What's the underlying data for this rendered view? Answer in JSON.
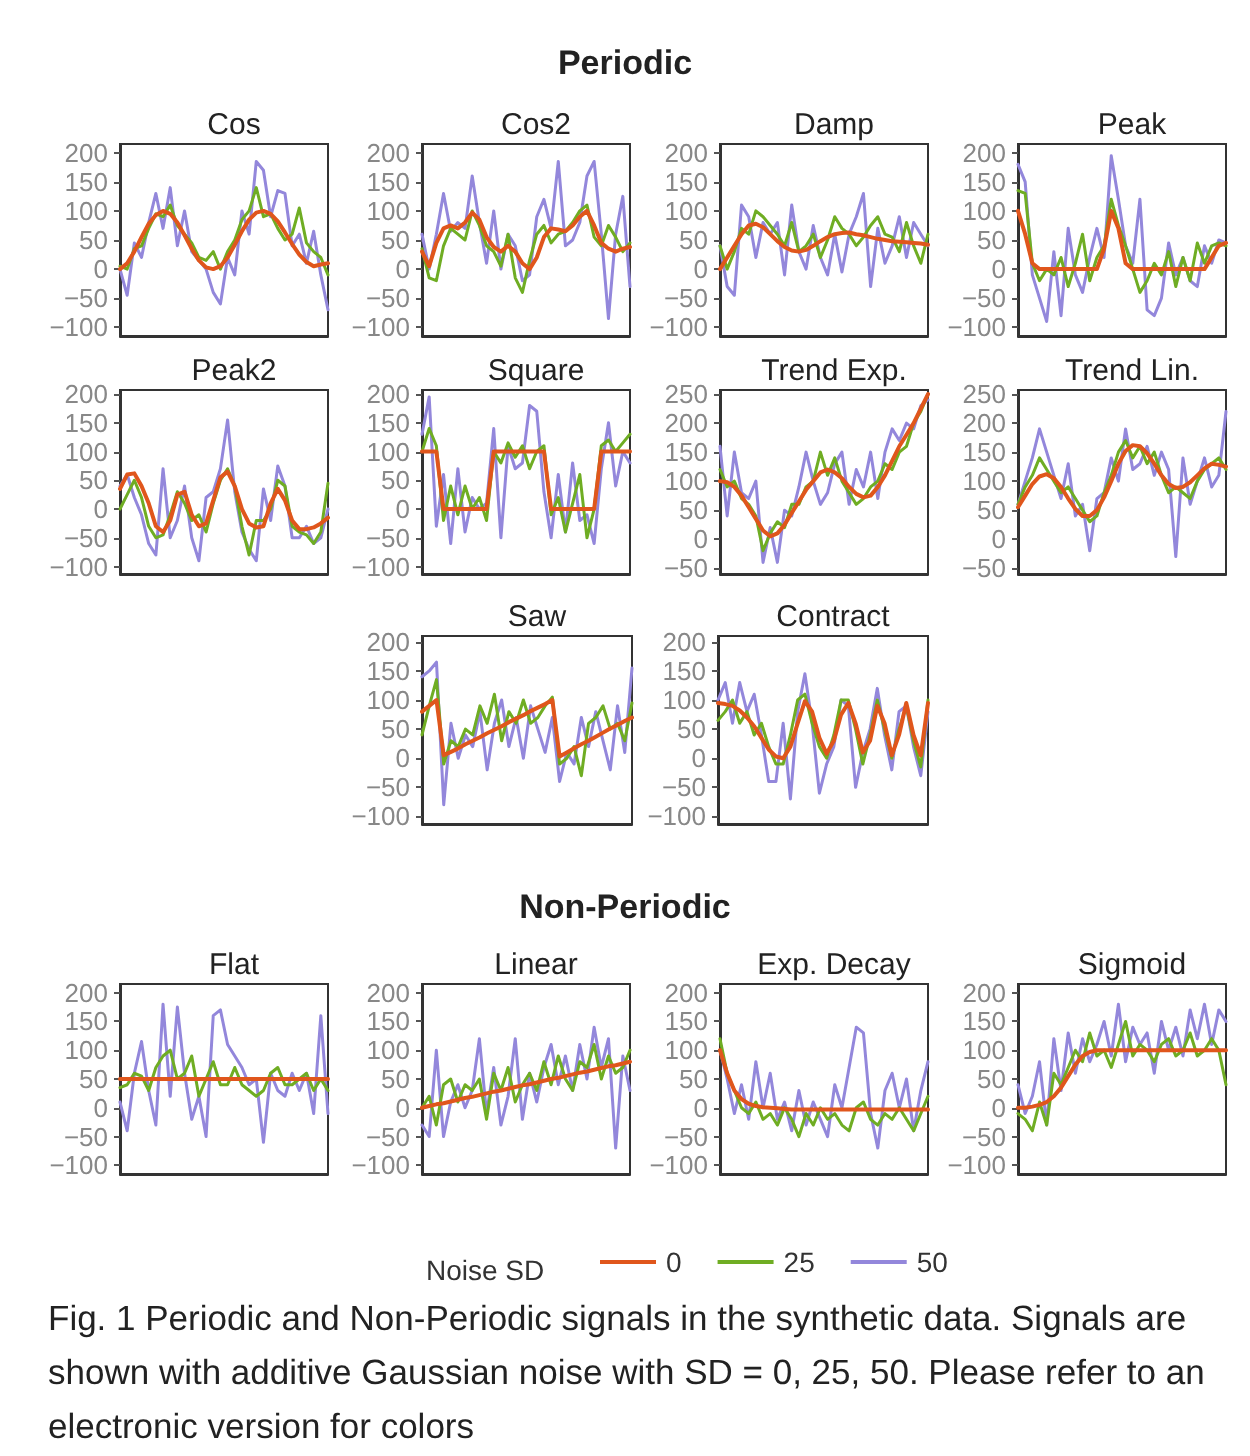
{
  "chart_data": [
    {
      "type": "line",
      "title": "Cos",
      "annotations": [
        "Periodic"
      ],
      "categories": [
        null,
        null,
        null,
        null,
        null,
        null,
        null,
        null,
        null,
        null,
        null,
        null,
        null,
        null,
        null,
        null,
        null,
        null,
        null,
        null,
        null,
        null,
        null,
        null,
        null,
        null,
        null,
        null,
        null,
        null
      ],
      "ylim": [
        -115,
        215
      ],
      "yticks": [
        -100,
        -50,
        0,
        50,
        100,
        150,
        200
      ],
      "tick_labels": "y",
      "series": [
        {
          "color": "#e0561c",
          "values": [
            0,
            10,
            30,
            55,
            78,
            93,
            100,
            95,
            80,
            58,
            35,
            15,
            3,
            0,
            5,
            20,
            42,
            65,
            85,
            97,
            100,
            95,
            82,
            63,
            43,
            25,
            12,
            5,
            8,
            10
          ]
        },
        {
          "color": "#6fad23",
          "values": [
            5,
            0,
            35,
            40,
            70,
            95,
            90,
            110,
            75,
            60,
            45,
            20,
            15,
            30,
            0,
            30,
            50,
            85,
            100,
            140,
            90,
            95,
            70,
            50,
            60,
            105,
            45,
            30,
            20,
            -10
          ]
        },
        {
          "color": "#9387db",
          "values": [
            0,
            -45,
            45,
            20,
            80,
            130,
            70,
            140,
            40,
            100,
            30,
            15,
            0,
            -40,
            -60,
            20,
            -10,
            100,
            60,
            185,
            170,
            90,
            135,
            130,
            40,
            60,
            10,
            65,
            -10,
            -70
          ]
        }
      ]
    },
    {
      "type": "line",
      "title": "Cos2",
      "categories": [
        null,
        null,
        null,
        null,
        null,
        null,
        null,
        null,
        null,
        null,
        null,
        null,
        null,
        null,
        null,
        null,
        null,
        null,
        null,
        null,
        null,
        null,
        null,
        null,
        null,
        null,
        null,
        null,
        null,
        null
      ],
      "ylim": [
        -115,
        215
      ],
      "yticks": [
        -100,
        -50,
        0,
        50,
        100,
        150,
        200
      ],
      "tick_labels": "y",
      "series": [
        {
          "color": "#e0561c",
          "values": [
            30,
            5,
            45,
            70,
            75,
            70,
            80,
            97,
            85,
            55,
            38,
            30,
            40,
            30,
            10,
            0,
            20,
            55,
            70,
            68,
            65,
            75,
            90,
            100,
            75,
            45,
            35,
            30,
            35,
            38
          ]
        },
        {
          "color": "#6fad23",
          "values": [
            35,
            -15,
            -20,
            40,
            70,
            60,
            50,
            100,
            75,
            40,
            30,
            5,
            60,
            -15,
            -40,
            15,
            60,
            75,
            45,
            60,
            65,
            80,
            100,
            110,
            55,
            40,
            75,
            55,
            30,
            45
          ]
        },
        {
          "color": "#9387db",
          "values": [
            60,
            0,
            60,
            130,
            65,
            80,
            70,
            160,
            80,
            10,
            100,
            0,
            60,
            40,
            -20,
            -10,
            90,
            120,
            70,
            185,
            40,
            50,
            80,
            160,
            185,
            60,
            -85,
            60,
            125,
            -30
          ]
        }
      ]
    },
    {
      "type": "line",
      "title": "Damp",
      "categories": [
        null,
        null,
        null,
        null,
        null,
        null,
        null,
        null,
        null,
        null,
        null,
        null,
        null,
        null,
        null,
        null,
        null,
        null,
        null,
        null,
        null,
        null,
        null,
        null,
        null,
        null,
        null,
        null,
        null,
        null
      ],
      "ylim": [
        -115,
        215
      ],
      "yticks": [
        -100,
        -50,
        0,
        50,
        100,
        150,
        200
      ],
      "tick_labels": "y",
      "series": [
        {
          "color": "#e0561c",
          "values": [
            0,
            20,
            40,
            60,
            75,
            78,
            72,
            60,
            48,
            38,
            32,
            30,
            33,
            40,
            48,
            55,
            60,
            62,
            63,
            60,
            58,
            55,
            52,
            50,
            48,
            47,
            46,
            45,
            44,
            42
          ]
        },
        {
          "color": "#6fad23",
          "values": [
            40,
            0,
            30,
            70,
            60,
            100,
            90,
            75,
            60,
            40,
            80,
            30,
            40,
            60,
            20,
            50,
            90,
            70,
            60,
            40,
            55,
            75,
            90,
            60,
            55,
            30,
            80,
            40,
            10,
            60
          ]
        },
        {
          "color": "#9387db",
          "values": [
            40,
            -30,
            -45,
            110,
            90,
            20,
            80,
            60,
            80,
            -10,
            110,
            30,
            0,
            75,
            20,
            -10,
            60,
            -5,
            60,
            90,
            130,
            -30,
            70,
            10,
            40,
            90,
            20,
            80,
            60,
            40
          ]
        }
      ]
    },
    {
      "type": "line",
      "title": "Peak",
      "categories": [
        null,
        null,
        null,
        null,
        null,
        null,
        null,
        null,
        null,
        null,
        null,
        null,
        null,
        null,
        null,
        null,
        null,
        null,
        null,
        null,
        null,
        null,
        null,
        null,
        null,
        null,
        null,
        null,
        null,
        null
      ],
      "ylim": [
        -115,
        215
      ],
      "yticks": [
        -100,
        -50,
        0,
        50,
        100,
        150,
        200
      ],
      "tick_labels": "y",
      "series": [
        {
          "color": "#e0561c",
          "values": [
            100,
            60,
            10,
            0,
            0,
            0,
            0,
            0,
            0,
            0,
            0,
            0,
            35,
            100,
            70,
            10,
            0,
            0,
            0,
            0,
            0,
            0,
            0,
            0,
            0,
            0,
            0,
            20,
            40,
            45
          ]
        },
        {
          "color": "#6fad23",
          "values": [
            135,
            130,
            10,
            -20,
            0,
            -10,
            20,
            -30,
            10,
            60,
            -20,
            20,
            40,
            120,
            75,
            40,
            0,
            -40,
            -20,
            10,
            -10,
            30,
            -30,
            20,
            -20,
            45,
            10,
            40,
            45,
            40
          ]
        },
        {
          "color": "#9387db",
          "values": [
            180,
            150,
            -10,
            -50,
            -90,
            30,
            -80,
            70,
            -10,
            -40,
            20,
            70,
            20,
            195,
            120,
            40,
            10,
            120,
            -70,
            -80,
            -50,
            45,
            -10,
            20,
            -20,
            -30,
            40,
            10,
            50,
            45
          ]
        }
      ]
    },
    {
      "type": "line",
      "title": "Peak2",
      "categories": [
        null,
        null,
        null,
        null,
        null,
        null,
        null,
        null,
        null,
        null,
        null,
        null,
        null,
        null,
        null,
        null,
        null,
        null,
        null,
        null,
        null,
        null,
        null,
        null,
        null,
        null,
        null,
        null,
        null,
        null
      ],
      "ylim": [
        -113,
        207
      ],
      "yticks": [
        -100,
        -50,
        0,
        50,
        100,
        150,
        200
      ],
      "tick_labels": "y",
      "series": [
        {
          "color": "#e0561c",
          "values": [
            35,
            60,
            62,
            40,
            10,
            -30,
            -40,
            -20,
            25,
            30,
            -10,
            -30,
            -25,
            15,
            55,
            65,
            40,
            0,
            -25,
            -32,
            -30,
            10,
            35,
            15,
            -20,
            -35,
            -35,
            -32,
            -25,
            -15
          ]
        },
        {
          "color": "#6fad23",
          "values": [
            0,
            25,
            50,
            20,
            -30,
            -50,
            -45,
            -10,
            30,
            10,
            -20,
            -10,
            -40,
            10,
            50,
            70,
            40,
            -30,
            -80,
            -20,
            -20,
            0,
            50,
            40,
            -30,
            -40,
            -45,
            -60,
            -40,
            45
          ]
        },
        {
          "color": "#9387db",
          "values": [
            40,
            60,
            20,
            -10,
            -60,
            -80,
            70,
            -50,
            -20,
            40,
            -50,
            -90,
            20,
            30,
            70,
            155,
            30,
            -40,
            -70,
            -90,
            35,
            -20,
            75,
            40,
            -50,
            -50,
            -30,
            -60,
            -50,
            0
          ]
        }
      ]
    },
    {
      "type": "line",
      "title": "Square",
      "categories": [
        null,
        null,
        null,
        null,
        null,
        null,
        null,
        null,
        null,
        null,
        null,
        null,
        null,
        null,
        null,
        null,
        null,
        null,
        null,
        null,
        null,
        null,
        null,
        null,
        null,
        null,
        null,
        null,
        null,
        null
      ],
      "ylim": [
        -113,
        207
      ],
      "yticks": [
        -100,
        -50,
        0,
        50,
        100,
        150,
        200
      ],
      "tick_labels": "y",
      "series": [
        {
          "color": "#e0561c",
          "values": [
            100,
            100,
            100,
            0,
            0,
            0,
            0,
            0,
            0,
            0,
            100,
            100,
            100,
            100,
            100,
            100,
            100,
            100,
            0,
            0,
            0,
            0,
            0,
            0,
            0,
            100,
            100,
            100,
            100,
            100
          ]
        },
        {
          "color": "#6fad23",
          "values": [
            100,
            140,
            110,
            -20,
            40,
            -10,
            40,
            0,
            20,
            -20,
            100,
            80,
            115,
            90,
            110,
            70,
            100,
            110,
            -10,
            20,
            -40,
            10,
            60,
            -50,
            0,
            110,
            120,
            100,
            115,
            130
          ]
        },
        {
          "color": "#9387db",
          "values": [
            130,
            195,
            -30,
            60,
            -60,
            70,
            -40,
            20,
            0,
            10,
            140,
            -50,
            110,
            70,
            80,
            180,
            170,
            30,
            -50,
            60,
            -40,
            80,
            -20,
            -10,
            -60,
            70,
            150,
            40,
            100,
            80
          ]
        }
      ]
    },
    {
      "type": "line",
      "title": "Trend Exp.",
      "categories": [
        null,
        null,
        null,
        null,
        null,
        null,
        null,
        null,
        null,
        null,
        null,
        null,
        null,
        null,
        null,
        null,
        null,
        null,
        null,
        null,
        null,
        null,
        null,
        null,
        null,
        null,
        null,
        null,
        null,
        null
      ],
      "ylim": [
        -60,
        257
      ],
      "yticks": [
        -50,
        0,
        50,
        100,
        150,
        200,
        250
      ],
      "tick_labels": "y",
      "series": [
        {
          "color": "#e0561c",
          "values": [
            100,
            98,
            90,
            75,
            55,
            35,
            15,
            5,
            10,
            25,
            45,
            65,
            85,
            100,
            115,
            120,
            115,
            105,
            90,
            78,
            72,
            75,
            90,
            110,
            135,
            160,
            180,
            200,
            225,
            250
          ]
        },
        {
          "color": "#6fad23",
          "values": [
            120,
            90,
            100,
            70,
            60,
            40,
            -20,
            10,
            30,
            20,
            60,
            60,
            90,
            100,
            150,
            110,
            140,
            100,
            80,
            60,
            70,
            90,
            100,
            130,
            120,
            150,
            160,
            200,
            220,
            250
          ]
        },
        {
          "color": "#9387db",
          "values": [
            160,
            40,
            150,
            80,
            70,
            100,
            -40,
            20,
            -40,
            50,
            40,
            90,
            150,
            100,
            60,
            80,
            130,
            150,
            60,
            120,
            90,
            150,
            70,
            150,
            190,
            170,
            200,
            190,
            230,
            240
          ]
        }
      ]
    },
    {
      "type": "line",
      "title": "Trend Lin.",
      "categories": [
        null,
        null,
        null,
        null,
        null,
        null,
        null,
        null,
        null,
        null,
        null,
        null,
        null,
        null,
        null,
        null,
        null,
        null,
        null,
        null,
        null,
        null,
        null,
        null,
        null,
        null,
        null,
        null,
        null,
        null
      ],
      "ylim": [
        -60,
        257
      ],
      "yticks": [
        -50,
        0,
        50,
        100,
        150,
        200,
        250
      ],
      "tick_labels": "y",
      "series": [
        {
          "color": "#e0561c",
          "values": [
            55,
            75,
            95,
            108,
            112,
            105,
            90,
            70,
            52,
            40,
            40,
            50,
            72,
            100,
            130,
            152,
            162,
            160,
            148,
            130,
            110,
            95,
            88,
            90,
            98,
            110,
            122,
            130,
            128,
            125
          ]
        },
        {
          "color": "#6fad23",
          "values": [
            60,
            90,
            110,
            140,
            120,
            100,
            80,
            90,
            70,
            50,
            30,
            40,
            80,
            110,
            150,
            170,
            140,
            160,
            130,
            150,
            110,
            80,
            90,
            80,
            70,
            100,
            120,
            130,
            140,
            120
          ]
        },
        {
          "color": "#9387db",
          "values": [
            60,
            100,
            140,
            190,
            150,
            110,
            70,
            130,
            40,
            60,
            -20,
            70,
            80,
            140,
            100,
            190,
            120,
            130,
            160,
            110,
            150,
            120,
            -30,
            140,
            60,
            100,
            140,
            90,
            110,
            220
          ]
        }
      ]
    },
    {
      "type": "line",
      "title": "Saw",
      "categories": [
        null,
        null,
        null,
        null,
        null,
        null,
        null,
        null,
        null,
        null,
        null,
        null,
        null,
        null,
        null,
        null,
        null,
        null,
        null,
        null,
        null,
        null,
        null,
        null,
        null,
        null,
        null,
        null,
        null,
        null
      ],
      "ylim": [
        -113,
        210
      ],
      "yticks": [
        -100,
        -50,
        0,
        50,
        100,
        150,
        200
      ],
      "tick_labels": "y",
      "series": [
        {
          "color": "#e0561c",
          "values": [
            80,
            90,
            100,
            5,
            11,
            17,
            24,
            30,
            36,
            43,
            49,
            55,
            62,
            68,
            74,
            81,
            87,
            93,
            100,
            3,
            10,
            17,
            24,
            30,
            37,
            44,
            51,
            57,
            64,
            70
          ]
        },
        {
          "color": "#6fad23",
          "values": [
            40,
            90,
            135,
            -10,
            30,
            20,
            50,
            40,
            90,
            60,
            110,
            30,
            80,
            60,
            100,
            60,
            70,
            90,
            105,
            -10,
            0,
            20,
            -30,
            60,
            70,
            90,
            50,
            60,
            30,
            95
          ]
        },
        {
          "color": "#9387db",
          "values": [
            140,
            150,
            165,
            -80,
            60,
            0,
            40,
            20,
            80,
            -20,
            60,
            100,
            20,
            70,
            0,
            90,
            50,
            10,
            70,
            -40,
            10,
            -10,
            70,
            20,
            80,
            30,
            -20,
            90,
            10,
            155
          ]
        }
      ]
    },
    {
      "type": "line",
      "title": "Contract",
      "categories": [
        null,
        null,
        null,
        null,
        null,
        null,
        null,
        null,
        null,
        null,
        null,
        null,
        null,
        null,
        null,
        null,
        null,
        null,
        null,
        null,
        null,
        null,
        null,
        null,
        null,
        null,
        null,
        null,
        null,
        null
      ],
      "ylim": [
        -113,
        210
      ],
      "yticks": [
        -100,
        -50,
        0,
        50,
        100,
        150,
        200
      ],
      "tick_labels": "y",
      "series": [
        {
          "color": "#e0561c",
          "values": [
            95,
            93,
            90,
            82,
            70,
            55,
            35,
            15,
            3,
            0,
            20,
            60,
            98,
            80,
            35,
            8,
            30,
            75,
            95,
            60,
            10,
            30,
            90,
            60,
            5,
            40,
            95,
            40,
            5,
            95
          ]
        },
        {
          "color": "#6fad23",
          "values": [
            65,
            80,
            100,
            60,
            80,
            40,
            60,
            20,
            -10,
            -10,
            40,
            100,
            110,
            60,
            20,
            0,
            40,
            100,
            100,
            50,
            -10,
            40,
            100,
            50,
            0,
            50,
            90,
            30,
            -15,
            100
          ]
        },
        {
          "color": "#9387db",
          "values": [
            100,
            130,
            60,
            130,
            80,
            110,
            40,
            -40,
            -40,
            60,
            -70,
            80,
            145,
            60,
            -60,
            -10,
            20,
            100,
            90,
            -50,
            10,
            50,
            120,
            40,
            -20,
            80,
            90,
            20,
            -30,
            80
          ]
        }
      ]
    },
    {
      "type": "line",
      "title": "Flat",
      "annotations": [
        "Non-Periodic"
      ],
      "categories": [
        null,
        null,
        null,
        null,
        null,
        null,
        null,
        null,
        null,
        null,
        null,
        null,
        null,
        null,
        null,
        null,
        null,
        null,
        null,
        null,
        null,
        null,
        null,
        null,
        null,
        null,
        null,
        null,
        null,
        null
      ],
      "ylim": [
        -115,
        215
      ],
      "yticks": [
        -100,
        -50,
        0,
        50,
        100,
        150,
        200
      ],
      "tick_labels": "y",
      "series": [
        {
          "color": "#e0561c",
          "values": [
            50,
            50,
            50,
            50,
            50,
            50,
            50,
            50,
            50,
            50,
            50,
            50,
            50,
            50,
            50,
            50,
            50,
            50,
            50,
            50,
            50,
            50,
            50,
            50,
            50,
            50,
            50,
            50,
            50,
            50
          ]
        },
        {
          "color": "#6fad23",
          "values": [
            35,
            40,
            60,
            55,
            30,
            70,
            90,
            100,
            50,
            60,
            90,
            20,
            50,
            80,
            40,
            40,
            70,
            40,
            30,
            20,
            30,
            60,
            70,
            40,
            40,
            50,
            60,
            30,
            50,
            30
          ]
        },
        {
          "color": "#9387db",
          "values": [
            10,
            -40,
            60,
            115,
            30,
            -30,
            180,
            20,
            175,
            60,
            -20,
            20,
            -50,
            160,
            170,
            110,
            90,
            70,
            40,
            50,
            -60,
            60,
            30,
            20,
            60,
            30,
            60,
            -10,
            160,
            -10
          ]
        }
      ]
    },
    {
      "type": "line",
      "title": "Linear",
      "categories": [
        null,
        null,
        null,
        null,
        null,
        null,
        null,
        null,
        null,
        null,
        null,
        null,
        null,
        null,
        null,
        null,
        null,
        null,
        null,
        null,
        null,
        null,
        null,
        null,
        null,
        null,
        null,
        null,
        null,
        null
      ],
      "ylim": [
        -115,
        215
      ],
      "yticks": [
        -100,
        -50,
        0,
        50,
        100,
        150,
        200
      ],
      "tick_labels": "y",
      "series": [
        {
          "color": "#e0561c",
          "values": [
            0,
            3,
            6,
            8,
            11,
            14,
            17,
            19,
            22,
            25,
            28,
            30,
            33,
            36,
            39,
            41,
            44,
            47,
            50,
            52,
            55,
            58,
            61,
            63,
            66,
            69,
            72,
            74,
            77,
            80
          ]
        },
        {
          "color": "#6fad23",
          "values": [
            0,
            20,
            -30,
            40,
            50,
            10,
            40,
            30,
            50,
            -20,
            60,
            30,
            70,
            10,
            40,
            60,
            30,
            80,
            40,
            90,
            50,
            30,
            80,
            70,
            110,
            50,
            90,
            60,
            70,
            100
          ]
        },
        {
          "color": "#9387db",
          "values": [
            -30,
            -50,
            100,
            -50,
            10,
            40,
            0,
            30,
            120,
            -10,
            70,
            -30,
            20,
            120,
            -20,
            60,
            10,
            70,
            110,
            40,
            90,
            30,
            110,
            50,
            140,
            70,
            120,
            -70,
            90,
            30
          ]
        }
      ]
    },
    {
      "type": "line",
      "title": "Exp. Decay",
      "categories": [
        null,
        null,
        null,
        null,
        null,
        null,
        null,
        null,
        null,
        null,
        null,
        null,
        null,
        null,
        null,
        null,
        null,
        null,
        null,
        null,
        null,
        null,
        null,
        null,
        null,
        null,
        null,
        null,
        null,
        null
      ],
      "ylim": [
        -115,
        215
      ],
      "yticks": [
        -100,
        -50,
        0,
        50,
        100,
        150,
        200
      ],
      "tick_labels": "y",
      "series": [
        {
          "color": "#e0561c",
          "values": [
            100,
            60,
            30,
            15,
            7,
            3,
            1,
            0,
            -1,
            -2,
            -3,
            -3,
            -3,
            -3,
            -3,
            -3,
            -3,
            -3,
            -3,
            -3,
            -3,
            -3,
            -3,
            -3,
            -3,
            -3,
            -3,
            -3,
            -3,
            -3
          ]
        },
        {
          "color": "#6fad23",
          "values": [
            120,
            60,
            30,
            0,
            -10,
            10,
            -20,
            -10,
            -30,
            0,
            -20,
            -50,
            -10,
            -30,
            0,
            -20,
            -10,
            -30,
            -40,
            0,
            10,
            -20,
            -30,
            -10,
            -20,
            0,
            -20,
            -40,
            -10,
            20
          ]
        },
        {
          "color": "#9387db",
          "values": [
            100,
            50,
            -10,
            40,
            -20,
            80,
            0,
            60,
            -20,
            10,
            -40,
            30,
            -30,
            10,
            -20,
            -50,
            40,
            0,
            70,
            140,
            130,
            -10,
            -70,
            30,
            60,
            0,
            50,
            -40,
            30,
            80
          ]
        }
      ]
    },
    {
      "type": "line",
      "title": "Sigmoid",
      "legend": "bottom",
      "legend_title": "Noise SD",
      "annotations": [
        "Fig. 1 Periodic and Non-Periodic signals in the synthetic data. Signals are shown with additive Gaussian noise with SD = 0, 25, 50. Please refer to an electronic version for colors"
      ],
      "categories": [
        null,
        null,
        null,
        null,
        null,
        null,
        null,
        null,
        null,
        null,
        null,
        null,
        null,
        null,
        null,
        null,
        null,
        null,
        null,
        null,
        null,
        null,
        null,
        null,
        null,
        null,
        null,
        null,
        null,
        null
      ],
      "ylim": [
        -115,
        215
      ],
      "yticks": [
        -100,
        -50,
        0,
        50,
        100,
        150,
        200
      ],
      "tick_labels": "y",
      "series": [
        {
          "name": "0",
          "color": "#e0561c",
          "values": [
            0,
            0,
            2,
            5,
            10,
            20,
            35,
            55,
            75,
            90,
            97,
            100,
            100,
            100,
            100,
            100,
            100,
            100,
            100,
            100,
            100,
            100,
            100,
            100,
            100,
            100,
            100,
            100,
            100,
            100
          ]
        },
        {
          "name": "25",
          "color": "#6fad23",
          "values": [
            -10,
            -20,
            -40,
            10,
            -30,
            60,
            40,
            70,
            100,
            80,
            130,
            90,
            100,
            70,
            110,
            150,
            90,
            110,
            100,
            80,
            110,
            120,
            90,
            100,
            130,
            90,
            100,
            120,
            100,
            40
          ]
        },
        {
          "name": "50",
          "color": "#9387db",
          "values": [
            40,
            -10,
            20,
            80,
            -30,
            120,
            30,
            130,
            60,
            120,
            80,
            110,
            150,
            90,
            180,
            80,
            140,
            110,
            130,
            60,
            150,
            100,
            140,
            90,
            170,
            120,
            180,
            110,
            170,
            150
          ]
        }
      ]
    }
  ]
}
